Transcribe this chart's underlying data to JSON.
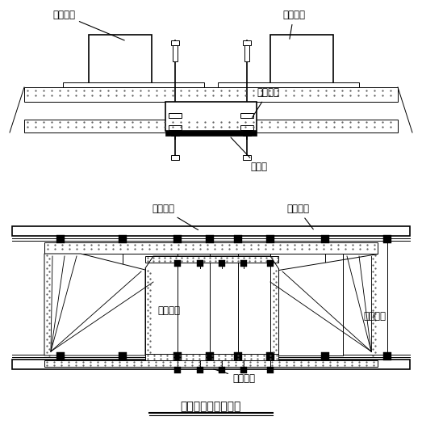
{
  "title": "中跨合拢吊架示意图",
  "bg_color": "#ffffff",
  "line_color": "#000000",
  "labels": {
    "peizhong_left": "配重水箱",
    "peizhong_right": "配重水箱",
    "jinxing": "劲性骨架",
    "chengzhongliang": "承重梁",
    "xuandiao": "悬吊系统",
    "chengzhong_hengliang": "承重横梁",
    "neimo": "内模系统",
    "waimo": "外模系统",
    "dimo": "底模系统"
  }
}
